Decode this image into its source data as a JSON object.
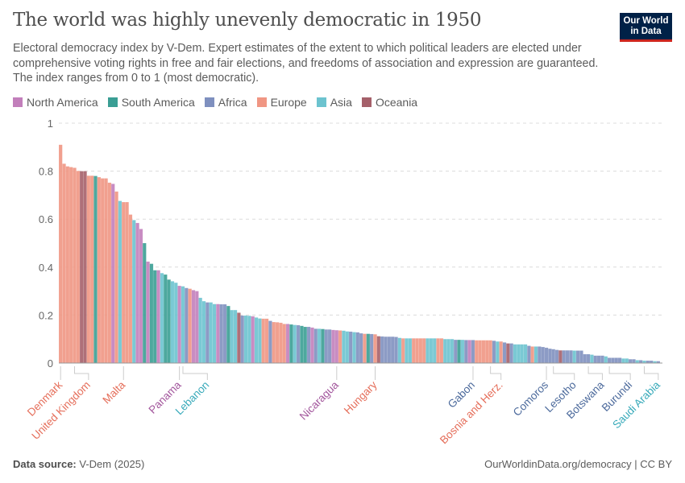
{
  "header": {
    "title": "The world was highly unevenly democratic in 1950",
    "subtitle": "Electoral democracy index by V-Dem. Expert estimates of the extent to which political leaders are elected under comprehensive voting rights in free and fair elections, and freedoms of association and expression are guaranteed. The index ranges from 0 to 1 (most democratic).",
    "logo_text": "Our World in Data"
  },
  "footer": {
    "source_label": "Data source:",
    "source_value": "V-Dem (2025)",
    "right": "OurWorldinData.org/democracy | CC BY"
  },
  "chart_data": {
    "type": "bar",
    "ylim": [
      0,
      1
    ],
    "yticks": [
      "0",
      "0.2",
      "0.4",
      "0.6",
      "0.8",
      "1"
    ],
    "grid": true,
    "legend_placement": "top-left",
    "legend": [
      {
        "code": "N",
        "name": "North America",
        "color": "#c27fbb"
      },
      {
        "code": "S",
        "name": "South America",
        "color": "#3a9e94"
      },
      {
        "code": "F",
        "name": "Africa",
        "color": "#7f90bf"
      },
      {
        "code": "E",
        "name": "Europe",
        "color": "#f09683"
      },
      {
        "code": "A",
        "name": "Asia",
        "color": "#6cc3cf"
      },
      {
        "code": "O",
        "name": "Oceania",
        "color": "#a5606a"
      }
    ],
    "regions": "EEEEEEOOEESEEEENEAEEEANNSNSSNASSAANAFENNAAFAANFFSAAOFAANAAEEFEEEENSAFSSFNFASFFNNEAAFAFFESFEOFFFFFAEAAEEEEAAAEEAAAFSAFNFEEEEEFAEFOFAAAAFEAFFFFFFOFFFAFFFFAFFFAFFFFAAFFAFAFFAF",
    "values": [
      0.91,
      0.831,
      0.82,
      0.817,
      0.814,
      0.801,
      0.8,
      0.8,
      0.781,
      0.781,
      0.78,
      0.775,
      0.77,
      0.77,
      0.752,
      0.747,
      0.715,
      0.676,
      0.671,
      0.671,
      0.619,
      0.596,
      0.584,
      0.559,
      0.5,
      0.423,
      0.414,
      0.387,
      0.387,
      0.375,
      0.369,
      0.348,
      0.341,
      0.335,
      0.322,
      0.32,
      0.313,
      0.31,
      0.304,
      0.3,
      0.272,
      0.258,
      0.253,
      0.253,
      0.246,
      0.246,
      0.245,
      0.245,
      0.238,
      0.221,
      0.221,
      0.21,
      0.198,
      0.198,
      0.197,
      0.195,
      0.19,
      0.186,
      0.185,
      0.185,
      0.176,
      0.171,
      0.17,
      0.168,
      0.163,
      0.163,
      0.161,
      0.159,
      0.158,
      0.155,
      0.151,
      0.151,
      0.148,
      0.143,
      0.143,
      0.142,
      0.14,
      0.14,
      0.138,
      0.137,
      0.136,
      0.135,
      0.132,
      0.131,
      0.129,
      0.128,
      0.124,
      0.122,
      0.122,
      0.121,
      0.12,
      0.112,
      0.111,
      0.11,
      0.11,
      0.11,
      0.109,
      0.105,
      0.103,
      0.103,
      0.103,
      0.103,
      0.103,
      0.103,
      0.103,
      0.103,
      0.103,
      0.103,
      0.103,
      0.103,
      0.1,
      0.1,
      0.1,
      0.097,
      0.097,
      0.097,
      0.096,
      0.096,
      0.096,
      0.095,
      0.095,
      0.095,
      0.095,
      0.095,
      0.093,
      0.09,
      0.09,
      0.086,
      0.082,
      0.082,
      0.078,
      0.078,
      0.078,
      0.078,
      0.072,
      0.069,
      0.069,
      0.069,
      0.067,
      0.064,
      0.06,
      0.058,
      0.055,
      0.053,
      0.053,
      0.053,
      0.053,
      0.052,
      0.052,
      0.052,
      0.037,
      0.037,
      0.035,
      0.031,
      0.031,
      0.031,
      0.028,
      0.022,
      0.022,
      0.022,
      0.022,
      0.019,
      0.019,
      0.016,
      0.016,
      0.012,
      0.012,
      0.01,
      0.01,
      0.01,
      0.008,
      0.008
    ],
    "annotations": [
      {
        "label": "Denmark",
        "region": "E",
        "bars": [
          1,
          1
        ]
      },
      {
        "label": "United Kingdom",
        "region": "E",
        "bars": [
          5,
          9
        ]
      },
      {
        "label": "Malta",
        "region": "E",
        "bars": [
          19,
          19
        ]
      },
      {
        "label": "Panama",
        "region": "N",
        "bars": [
          35,
          35
        ]
      },
      {
        "label": "Lebanon",
        "region": "A",
        "bars": [
          36,
          43
        ]
      },
      {
        "label": "Nicaragua",
        "region": "N",
        "bars": [
          80,
          80
        ]
      },
      {
        "label": "Hungary",
        "region": "E",
        "bars": [
          91,
          91
        ]
      },
      {
        "label": "Gabon",
        "region": "F",
        "bars": [
          119,
          119
        ]
      },
      {
        "label": "Bosnia and Herz.",
        "region": "E",
        "bars": [
          124,
          127
        ]
      },
      {
        "label": "Comoros",
        "region": "F",
        "bars": [
          140,
          140
        ]
      },
      {
        "label": "Lesotho",
        "region": "F",
        "bars": [
          142,
          148
        ]
      },
      {
        "label": "Botswana",
        "region": "F",
        "bars": [
          152,
          156
        ]
      },
      {
        "label": "Burundi",
        "region": "F",
        "bars": [
          158,
          164
        ]
      },
      {
        "label": "Saudi Arabia",
        "region": "A",
        "bars": [
          168,
          172
        ]
      }
    ],
    "label_colors": {
      "N": "#a2559c",
      "S": "#2c8465",
      "F": "#4c6a9c",
      "E": "#e56e5a",
      "A": "#38aaba",
      "O": "#9a5129"
    }
  }
}
